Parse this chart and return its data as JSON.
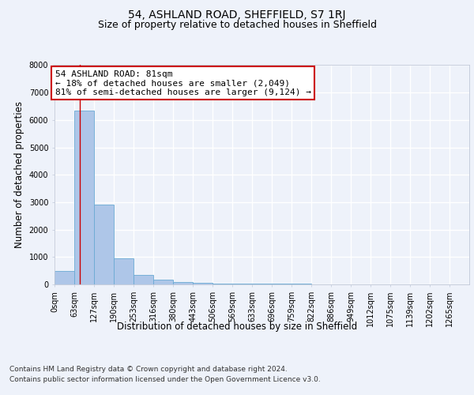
{
  "title": "54, ASHLAND ROAD, SHEFFIELD, S7 1RJ",
  "subtitle": "Size of property relative to detached houses in Sheffield",
  "xlabel": "Distribution of detached houses by size in Sheffield",
  "ylabel": "Number of detached properties",
  "bin_labels": [
    "0sqm",
    "63sqm",
    "127sqm",
    "190sqm",
    "253sqm",
    "316sqm",
    "380sqm",
    "443sqm",
    "506sqm",
    "569sqm",
    "633sqm",
    "696sqm",
    "759sqm",
    "822sqm",
    "886sqm",
    "949sqm",
    "1012sqm",
    "1075sqm",
    "1139sqm",
    "1202sqm",
    "1265sqm"
  ],
  "bin_edges": [
    0,
    63,
    127,
    190,
    253,
    316,
    380,
    443,
    506,
    569,
    633,
    696,
    759,
    822,
    886,
    949,
    1012,
    1075,
    1139,
    1202,
    1265
  ],
  "bar_heights": [
    500,
    6350,
    2900,
    950,
    350,
    175,
    100,
    50,
    40,
    30,
    25,
    20,
    15,
    12,
    10,
    8,
    7,
    6,
    5,
    4
  ],
  "bar_color": "#aec6e8",
  "bar_edge_color": "#6aaad4",
  "property_size": 81,
  "vline_color": "#cc0000",
  "annotation_text": "54 ASHLAND ROAD: 81sqm\n← 18% of detached houses are smaller (2,049)\n81% of semi-detached houses are larger (9,124) →",
  "annotation_box_color": "#ffffff",
  "annotation_border_color": "#cc0000",
  "ylim": [
    0,
    8000
  ],
  "yticks": [
    0,
    1000,
    2000,
    3000,
    4000,
    5000,
    6000,
    7000,
    8000
  ],
  "footer_line1": "Contains HM Land Registry data © Crown copyright and database right 2024.",
  "footer_line2": "Contains public sector information licensed under the Open Government Licence v3.0.",
  "background_color": "#eef2fa",
  "plot_bg_color": "#eef2fa",
  "grid_color": "#ffffff",
  "title_fontsize": 10,
  "subtitle_fontsize": 9,
  "axis_label_fontsize": 8.5,
  "tick_fontsize": 7,
  "annotation_fontsize": 8,
  "footer_fontsize": 6.5
}
